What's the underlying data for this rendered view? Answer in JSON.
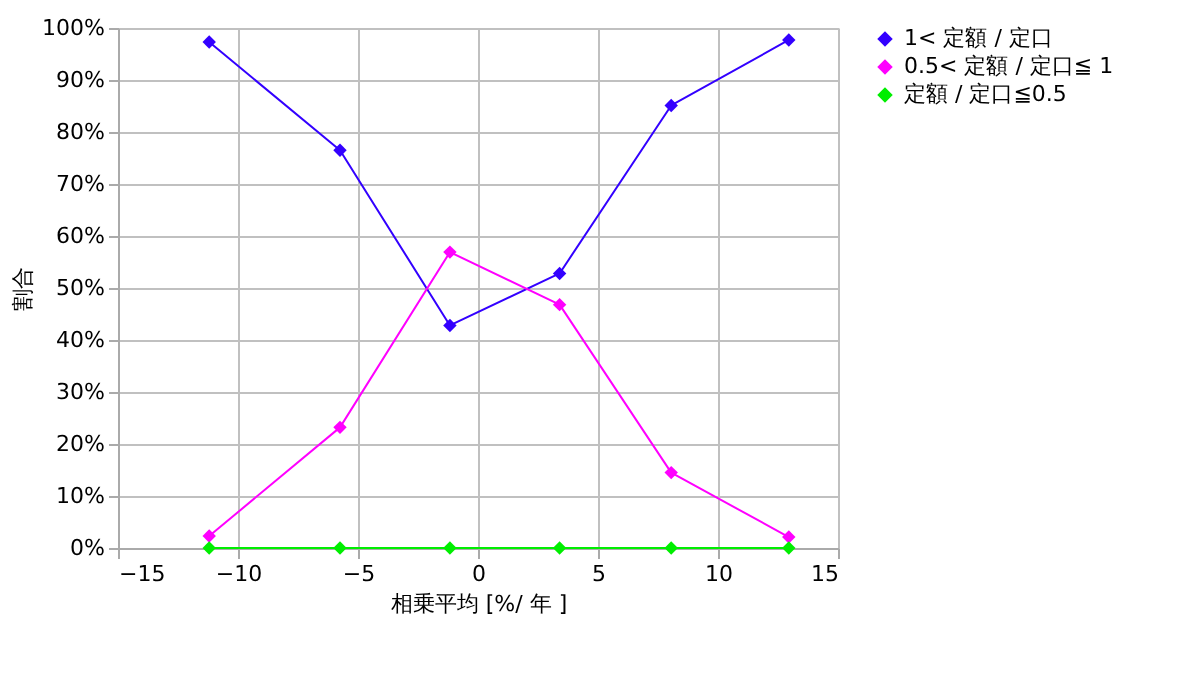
{
  "chart_data": {
    "type": "line",
    "xlabel": "相乗平均 [%/ 年 ]",
    "ylabel": "割合",
    "x": [
      -11.2,
      -5.75,
      -1.17,
      3.4,
      8.05,
      12.95
    ],
    "series": [
      {
        "name": "1< 定額 / 定口",
        "color": "#3300ff",
        "values": [
          97.3,
          76.5,
          42.8,
          52.8,
          85.1,
          97.7
        ]
      },
      {
        "name": "0.5< 定額 / 定口≦ 1",
        "color": "#ff00ff",
        "values": [
          2.3,
          23.2,
          56.9,
          46.8,
          14.5,
          2.1
        ]
      },
      {
        "name": "定額 / 定口≦0.5",
        "color": "#00ee00",
        "values": [
          0,
          0,
          0,
          0,
          0,
          0
        ]
      }
    ],
    "xlim": [
      -15,
      15
    ],
    "xticks": [
      -15,
      -10,
      -5,
      0,
      5,
      10,
      15
    ],
    "ylim": [
      0,
      100
    ],
    "yticks": [
      {
        "value": 0,
        "label": "0%"
      },
      {
        "value": 10,
        "label": "10%"
      },
      {
        "value": 20,
        "label": "20%"
      },
      {
        "value": 30,
        "label": "30%"
      },
      {
        "value": 40,
        "label": "40%"
      },
      {
        "value": 50,
        "label": "50%"
      },
      {
        "value": 60,
        "label": "60%"
      },
      {
        "value": 70,
        "label": "70%"
      },
      {
        "value": 80,
        "label": "80%"
      },
      {
        "value": 90,
        "label": "90%"
      },
      {
        "value": 100,
        "label": "100%"
      }
    ],
    "grid": true,
    "legend": "right",
    "marker": "diamond",
    "line_style": "solid"
  }
}
